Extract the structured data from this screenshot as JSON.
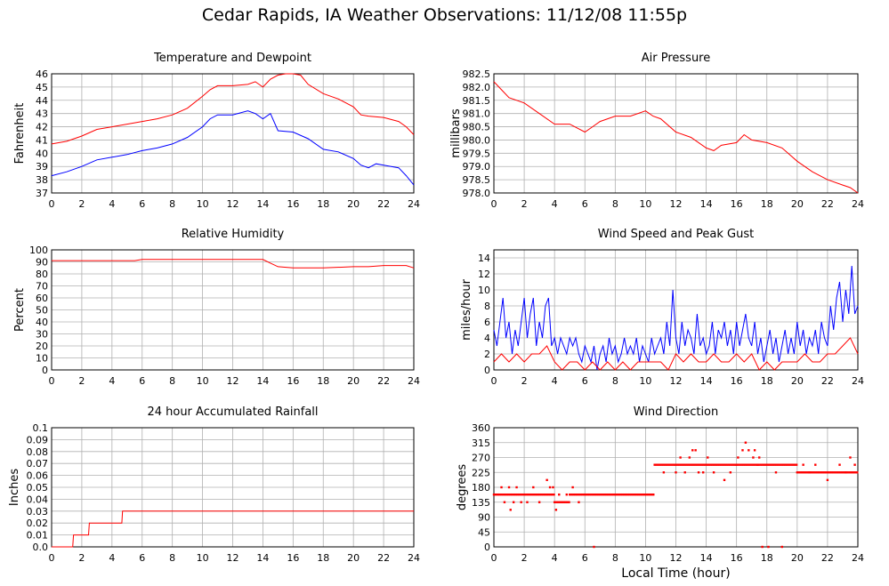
{
  "title": "Cedar Rapids, IA Weather Observations: 11/12/08 11:55p",
  "shared_xlabel": "Local Time (hour)",
  "colors": {
    "red": "#ff0000",
    "blue": "#0000ff",
    "grid": "#b0b0b0"
  },
  "chart_data": [
    {
      "id": "temp",
      "type": "line",
      "title": "Temperature and Dewpoint",
      "xlabel": "",
      "ylabel": "Fahrenheit",
      "xlim": [
        0,
        24
      ],
      "ylim": [
        37,
        46
      ],
      "xticks": [
        0,
        2,
        4,
        6,
        8,
        10,
        12,
        14,
        16,
        18,
        20,
        22,
        24
      ],
      "yticks": [
        37,
        38,
        39,
        40,
        41,
        42,
        43,
        44,
        45,
        46
      ],
      "grid": true,
      "series": [
        {
          "color": "#ff0000",
          "x": [
            0,
            1,
            2,
            3,
            4,
            5,
            6,
            7,
            8,
            9,
            10,
            10.5,
            11,
            12,
            13,
            13.5,
            14,
            14.5,
            15,
            15.5,
            16,
            16.5,
            17,
            18,
            19,
            20,
            20.5,
            21,
            22,
            23,
            23.5,
            24
          ],
          "y": [
            40.7,
            40.9,
            41.3,
            41.8,
            42.0,
            42.2,
            42.4,
            42.6,
            42.9,
            43.4,
            44.3,
            44.8,
            45.1,
            45.1,
            45.2,
            45.4,
            45.0,
            45.6,
            45.9,
            46.0,
            46.0,
            45.9,
            45.2,
            44.5,
            44.1,
            43.5,
            42.9,
            42.8,
            42.7,
            42.4,
            42.0,
            41.4
          ]
        },
        {
          "color": "#0000ff",
          "x": [
            0,
            1,
            2,
            3,
            4,
            5,
            6,
            7,
            8,
            9,
            10,
            10.5,
            11,
            12,
            13,
            13.5,
            14,
            14.5,
            15,
            16,
            17,
            18,
            19,
            20,
            20.5,
            21,
            21.5,
            22,
            23,
            23.5,
            24
          ],
          "y": [
            38.3,
            38.6,
            39.0,
            39.5,
            39.7,
            39.9,
            40.2,
            40.4,
            40.7,
            41.2,
            42.0,
            42.6,
            42.9,
            42.9,
            43.2,
            43.0,
            42.6,
            43.0,
            41.7,
            41.6,
            41.1,
            40.3,
            40.1,
            39.6,
            39.1,
            38.9,
            39.2,
            39.1,
            38.9,
            38.3,
            37.6
          ]
        }
      ]
    },
    {
      "id": "pressure",
      "type": "line",
      "title": "Air Pressure",
      "xlabel": "",
      "ylabel": "millibars",
      "xlim": [
        0,
        24
      ],
      "ylim": [
        978.0,
        982.5
      ],
      "xticks": [
        0,
        2,
        4,
        6,
        8,
        10,
        12,
        14,
        16,
        18,
        20,
        22,
        24
      ],
      "yticks": [
        978.0,
        978.5,
        979.0,
        979.5,
        980.0,
        980.5,
        981.0,
        981.5,
        982.0,
        982.5
      ],
      "yticklabels": [
        "978.0",
        "978.5",
        "979.0",
        "979.5",
        "980.0",
        "980.5",
        "981.0",
        "981.5",
        "982.0",
        "982.5"
      ],
      "grid": true,
      "series": [
        {
          "color": "#ff0000",
          "x": [
            0,
            0.5,
            1,
            2,
            3,
            4,
            5,
            6,
            6.5,
            7,
            8,
            9,
            10,
            10.5,
            11,
            12,
            13,
            14,
            14.5,
            15,
            16,
            16.5,
            17,
            18,
            19,
            20,
            21,
            22,
            23,
            23.5,
            24
          ],
          "y": [
            982.2,
            981.9,
            981.6,
            981.4,
            981.0,
            980.6,
            980.6,
            980.3,
            980.5,
            980.7,
            980.9,
            980.9,
            981.1,
            980.9,
            980.8,
            980.3,
            980.1,
            979.7,
            979.6,
            979.8,
            979.9,
            980.2,
            980.0,
            979.9,
            979.7,
            979.2,
            978.8,
            978.5,
            978.3,
            978.2,
            978.0
          ]
        }
      ]
    },
    {
      "id": "humidity",
      "type": "line",
      "title": "Relative Humidity",
      "xlabel": "",
      "ylabel": "Percent",
      "xlim": [
        0,
        24
      ],
      "ylim": [
        0,
        100
      ],
      "xticks": [
        0,
        2,
        4,
        6,
        8,
        10,
        12,
        14,
        16,
        18,
        20,
        22,
        24
      ],
      "yticks": [
        0,
        10,
        20,
        30,
        40,
        50,
        60,
        70,
        80,
        90,
        100
      ],
      "grid": true,
      "series": [
        {
          "color": "#ff0000",
          "x": [
            0,
            5.5,
            6,
            14,
            14.5,
            15,
            16,
            18,
            20,
            21,
            22,
            23.5,
            24
          ],
          "y": [
            91,
            91,
            92,
            92,
            89,
            86,
            85,
            85,
            86,
            86,
            87,
            87,
            85
          ]
        }
      ]
    },
    {
      "id": "wind",
      "type": "line",
      "title": "Wind Speed and Peak Gust",
      "xlabel": "",
      "ylabel": "miles/hour",
      "xlim": [
        0,
        24
      ],
      "ylim": [
        0,
        15
      ],
      "xticks": [
        0,
        2,
        4,
        6,
        8,
        10,
        12,
        14,
        16,
        18,
        20,
        22,
        24
      ],
      "yticks": [
        0,
        2,
        4,
        6,
        8,
        10,
        12,
        14
      ],
      "grid": true,
      "series": [
        {
          "color": "#0000ff",
          "x": [
            0,
            0.2,
            0.4,
            0.6,
            0.8,
            1,
            1.2,
            1.4,
            1.6,
            1.8,
            2,
            2.2,
            2.4,
            2.6,
            2.8,
            3,
            3.2,
            3.4,
            3.6,
            3.8,
            4,
            4.2,
            4.4,
            4.6,
            4.8,
            5,
            5.2,
            5.4,
            5.6,
            5.8,
            6,
            6.2,
            6.4,
            6.6,
            6.8,
            7,
            7.2,
            7.4,
            7.6,
            7.8,
            8,
            8.2,
            8.4,
            8.6,
            8.8,
            9,
            9.2,
            9.4,
            9.6,
            9.8,
            10,
            10.2,
            10.4,
            10.6,
            10.8,
            11,
            11.2,
            11.4,
            11.6,
            11.8,
            12,
            12.2,
            12.4,
            12.6,
            12.8,
            13,
            13.2,
            13.4,
            13.6,
            13.8,
            14,
            14.2,
            14.4,
            14.6,
            14.8,
            15,
            15.2,
            15.4,
            15.6,
            15.8,
            16,
            16.2,
            16.4,
            16.6,
            16.8,
            17,
            17.2,
            17.4,
            17.6,
            17.8,
            18,
            18.2,
            18.4,
            18.6,
            18.8,
            19,
            19.2,
            19.4,
            19.6,
            19.8,
            20,
            20.2,
            20.4,
            20.6,
            20.8,
            21,
            21.2,
            21.4,
            21.6,
            21.8,
            22,
            22.2,
            22.4,
            22.6,
            22.8,
            23,
            23.2,
            23.4,
            23.6,
            23.8,
            24
          ],
          "y": [
            5,
            3,
            6,
            9,
            4,
            6,
            2,
            5,
            3,
            6,
            9,
            4,
            7,
            9,
            3,
            6,
            4,
            8,
            9,
            3,
            4,
            2,
            4,
            3,
            2,
            4,
            3,
            4,
            2,
            1,
            3,
            2,
            1,
            3,
            0,
            2,
            3,
            1,
            4,
            2,
            3,
            1,
            2,
            4,
            2,
            3,
            2,
            4,
            1,
            3,
            2,
            1,
            4,
            2,
            3,
            4,
            2,
            6,
            3,
            10,
            4,
            2,
            6,
            3,
            5,
            4,
            2,
            7,
            3,
            4,
            2,
            3,
            6,
            2,
            5,
            4,
            6,
            3,
            5,
            2,
            6,
            3,
            5,
            7,
            4,
            3,
            6,
            2,
            4,
            1,
            3,
            5,
            2,
            4,
            1,
            3,
            5,
            2,
            4,
            2,
            6,
            3,
            5,
            2,
            4,
            3,
            5,
            2,
            6,
            4,
            3,
            8,
            5,
            9,
            11,
            6,
            10,
            7,
            13,
            7,
            8
          ]
        },
        {
          "color": "#ff0000",
          "x": [
            0,
            0.5,
            1,
            1.5,
            2,
            2.5,
            3,
            3.5,
            4,
            4.5,
            5,
            5.5,
            6,
            6.5,
            7,
            7.5,
            8,
            8.5,
            9,
            9.5,
            10,
            10.5,
            11,
            11.5,
            12,
            12.5,
            13,
            13.5,
            14,
            14.5,
            15,
            15.5,
            16,
            16.5,
            17,
            17.5,
            18,
            18.5,
            19,
            19.5,
            20,
            20.5,
            21,
            21.5,
            22,
            22.5,
            23,
            23.5,
            24
          ],
          "y": [
            1,
            2,
            1,
            2,
            1,
            2,
            2,
            3,
            1,
            0,
            1,
            1,
            0,
            1,
            0,
            1,
            0,
            1,
            0,
            1,
            1,
            1,
            1,
            0,
            2,
            1,
            2,
            1,
            1,
            2,
            1,
            1,
            2,
            1,
            2,
            0,
            1,
            0,
            1,
            1,
            1,
            2,
            1,
            1,
            2,
            2,
            3,
            4,
            2
          ]
        }
      ]
    },
    {
      "id": "rain",
      "type": "line",
      "title": "24 hour Accumulated Rainfall",
      "xlabel": "",
      "ylabel": "Inches",
      "xlim": [
        0,
        24
      ],
      "ylim": [
        0,
        0.1
      ],
      "xticks": [
        0,
        2,
        4,
        6,
        8,
        10,
        12,
        14,
        16,
        18,
        20,
        22,
        24
      ],
      "yticks": [
        0,
        0.01,
        0.02,
        0.03,
        0.04,
        0.05,
        0.06,
        0.07,
        0.08,
        0.09,
        0.1
      ],
      "yticklabels": [
        "0.0",
        "0.01",
        "0.02",
        "0.03",
        "0.04",
        "0.05",
        "0.06",
        "0.07",
        "0.08",
        "0.09",
        "0.1"
      ],
      "grid": true,
      "series": [
        {
          "color": "#ff0000",
          "x": [
            0,
            1.4,
            1.45,
            2.2,
            2.25,
            2.45,
            2.5,
            4.65,
            4.7,
            24
          ],
          "y": [
            0,
            0,
            0.01,
            0.01,
            0.01,
            0.01,
            0.02,
            0.02,
            0.03,
            0.03
          ]
        }
      ]
    },
    {
      "id": "direction",
      "type": "scatter",
      "title": "Wind Direction",
      "xlabel": "Local Time (hour)",
      "ylabel": "degrees",
      "xlim": [
        0,
        24
      ],
      "ylim": [
        0,
        360
      ],
      "xticks": [
        0,
        2,
        4,
        6,
        8,
        10,
        12,
        14,
        16,
        18,
        20,
        22,
        24
      ],
      "yticks": [
        0,
        45,
        90,
        135,
        180,
        225,
        270,
        315,
        360
      ],
      "grid": true,
      "series": [
        {
          "color": "#ff0000",
          "segments": [
            {
              "x0": 0.0,
              "x1": 4.0,
              "y": 158
            },
            {
              "x0": 4.0,
              "x1": 5.0,
              "y": 135
            },
            {
              "x0": 5.0,
              "x1": 10.6,
              "y": 158
            },
            {
              "x0": 10.6,
              "x1": 12.0,
              "y": 248
            },
            {
              "x0": 12.0,
              "x1": 16.0,
              "y": 248
            },
            {
              "x0": 16.0,
              "x1": 20.0,
              "y": 248
            },
            {
              "x0": 20.0,
              "x1": 24.0,
              "y": 225
            }
          ],
          "points": [
            [
              0.5,
              180
            ],
            [
              0.7,
              135
            ],
            [
              1.0,
              180
            ],
            [
              1.1,
              112
            ],
            [
              1.3,
              135
            ],
            [
              1.5,
              180
            ],
            [
              1.8,
              135
            ],
            [
              2.2,
              135
            ],
            [
              2.6,
              180
            ],
            [
              3.0,
              135
            ],
            [
              3.5,
              202
            ],
            [
              3.7,
              180
            ],
            [
              3.9,
              180
            ],
            [
              4.1,
              112
            ],
            [
              4.3,
              158
            ],
            [
              4.8,
              158
            ],
            [
              5.2,
              180
            ],
            [
              5.6,
              135
            ],
            [
              6.6,
              0
            ],
            [
              11.2,
              225
            ],
            [
              12.0,
              225
            ],
            [
              12.3,
              270
            ],
            [
              12.6,
              225
            ],
            [
              12.9,
              270
            ],
            [
              13.1,
              292
            ],
            [
              13.3,
              292
            ],
            [
              13.5,
              225
            ],
            [
              13.8,
              225
            ],
            [
              14.1,
              270
            ],
            [
              14.5,
              225
            ],
            [
              15.2,
              202
            ],
            [
              15.6,
              225
            ],
            [
              16.1,
              270
            ],
            [
              16.4,
              292
            ],
            [
              16.6,
              315
            ],
            [
              16.8,
              292
            ],
            [
              17.1,
              270
            ],
            [
              17.2,
              292
            ],
            [
              17.4,
              248
            ],
            [
              17.5,
              270
            ],
            [
              17.7,
              0
            ],
            [
              18.1,
              0
            ],
            [
              18.6,
              225
            ],
            [
              19.0,
              0
            ],
            [
              20.4,
              248
            ],
            [
              20.8,
              225
            ],
            [
              21.2,
              248
            ],
            [
              22.0,
              202
            ],
            [
              22.8,
              248
            ],
            [
              23.2,
              225
            ],
            [
              23.5,
              270
            ],
            [
              23.8,
              248
            ]
          ]
        }
      ]
    }
  ]
}
